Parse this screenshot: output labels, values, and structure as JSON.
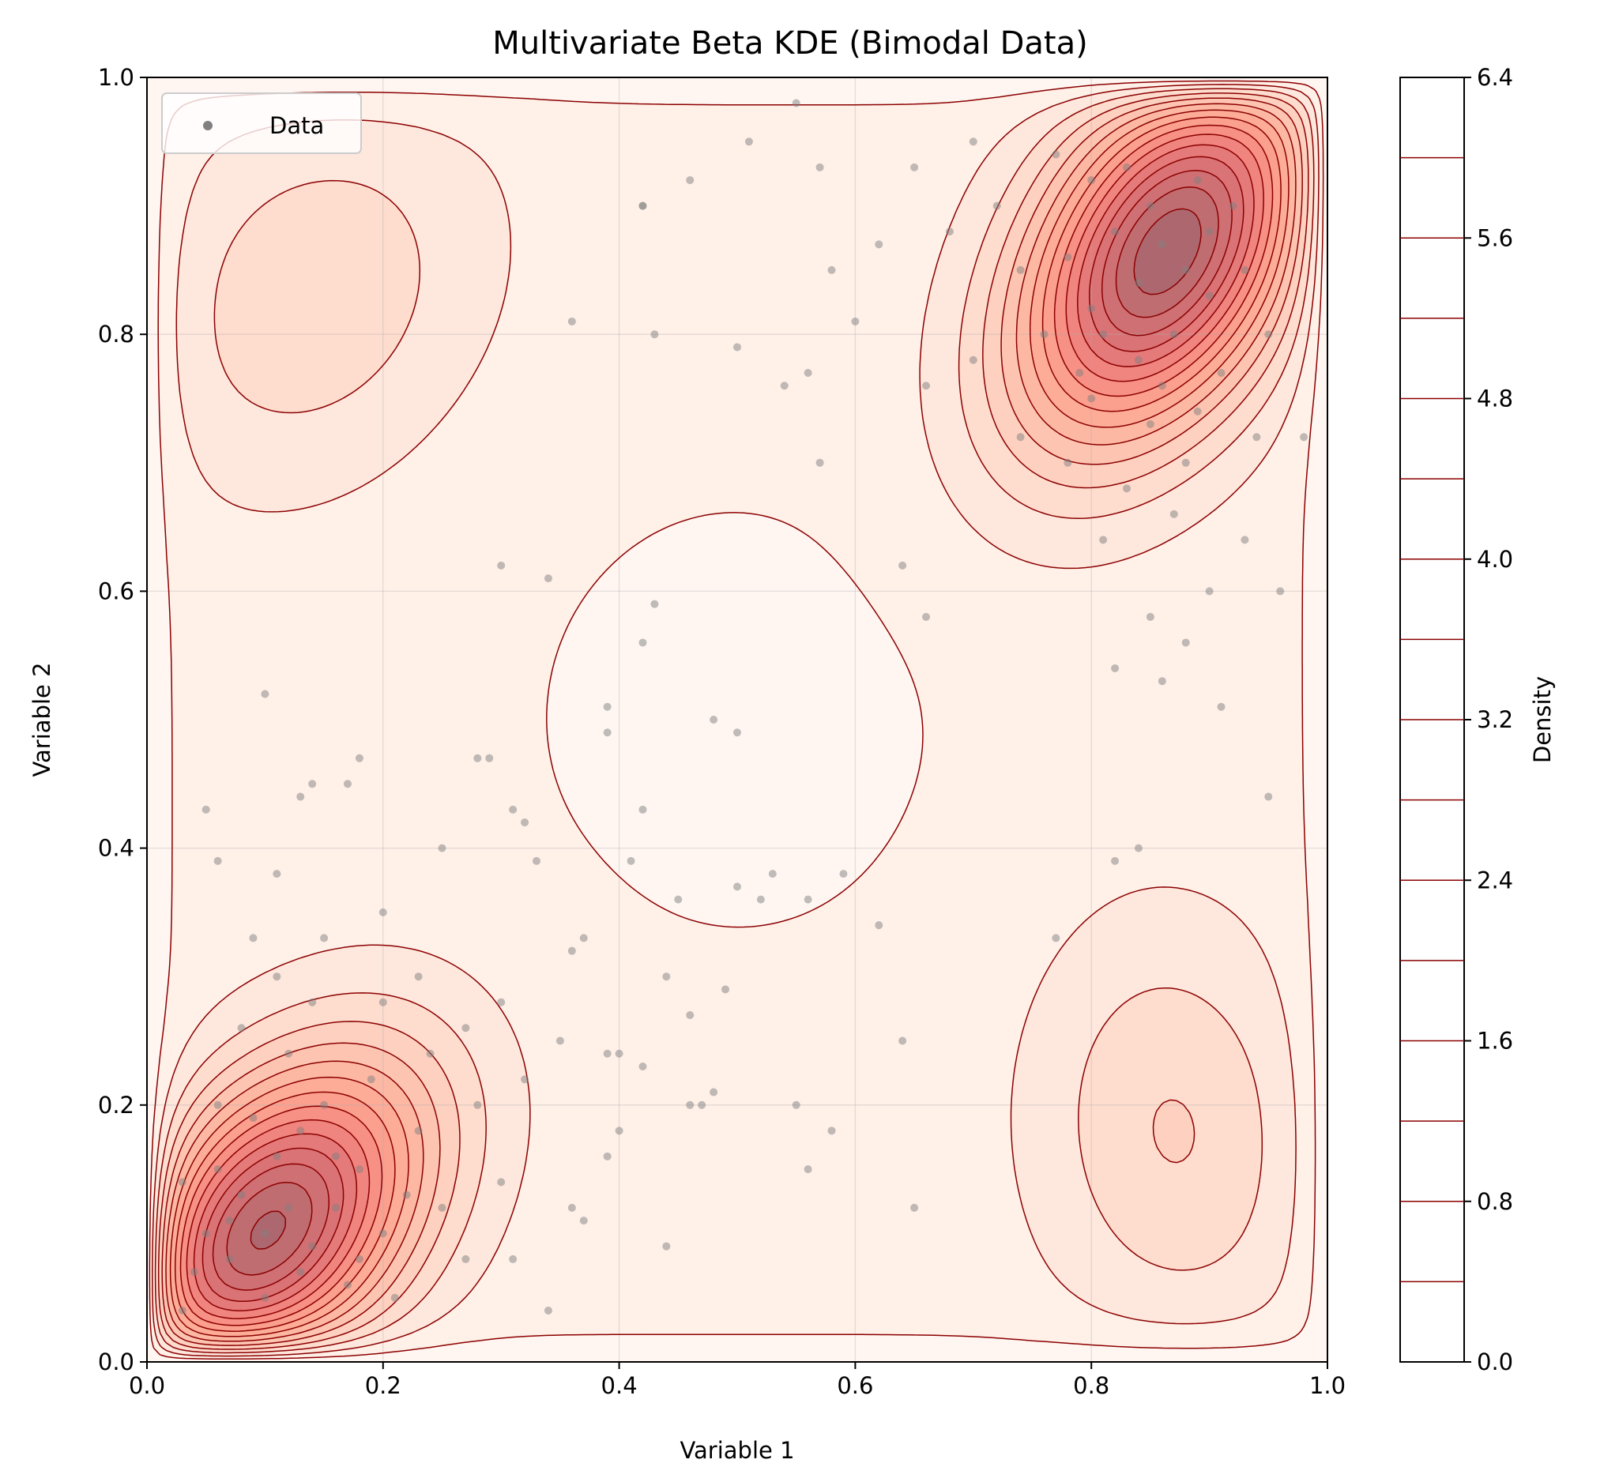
{
  "chart_data": {
    "type": "contour",
    "title": "Multivariate Beta KDE (Bimodal Data)",
    "xlabel": "Variable 1",
    "ylabel": "Variable 2",
    "xlim": [
      0,
      1
    ],
    "ylim": [
      0,
      1
    ],
    "xticks": [
      "0.0",
      "0.2",
      "0.4",
      "0.6",
      "0.8",
      "1.0"
    ],
    "yticks": [
      "0.0",
      "0.2",
      "0.4",
      "0.6",
      "0.8",
      "1.0"
    ],
    "grid": true,
    "colormap": "Reds",
    "line_color": "#8b0000",
    "point_color": "#808080",
    "legend": {
      "placement": "top-left",
      "entries": [
        "Data"
      ]
    },
    "colorbar": {
      "label": "Density",
      "range": [
        0,
        6.4
      ],
      "ticks": [
        "0.0",
        "0.8",
        "1.6",
        "2.4",
        "3.2",
        "4.0",
        "4.8",
        "5.6",
        "6.4"
      ],
      "level_step": 0.4
    },
    "peaks": [
      {
        "x": 0.865,
        "y": 0.865,
        "density": 6.2
      },
      {
        "x": 0.1,
        "y": 0.1,
        "density": 6.0
      },
      {
        "x": 0.14,
        "y": 0.83,
        "density": 1.4
      },
      {
        "x": 0.87,
        "y": 0.18,
        "density": 1.5
      }
    ],
    "points": [
      [
        0.86,
        0.87
      ],
      [
        0.85,
        0.9
      ],
      [
        0.88,
        0.85
      ],
      [
        0.82,
        0.88
      ],
      [
        0.9,
        0.83
      ],
      [
        0.87,
        0.8
      ],
      [
        0.84,
        0.78
      ],
      [
        0.8,
        0.82
      ],
      [
        0.78,
        0.86
      ],
      [
        0.92,
        0.9
      ],
      [
        0.83,
        0.93
      ],
      [
        0.89,
        0.92
      ],
      [
        0.76,
        0.8
      ],
      [
        0.74,
        0.85
      ],
      [
        0.8,
        0.75
      ],
      [
        0.85,
        0.73
      ],
      [
        0.88,
        0.7
      ],
      [
        0.91,
        0.77
      ],
      [
        0.93,
        0.85
      ],
      [
        0.72,
        0.9
      ],
      [
        0.7,
        0.78
      ],
      [
        0.78,
        0.7
      ],
      [
        0.83,
        0.68
      ],
      [
        0.87,
        0.66
      ],
      [
        0.9,
        0.6
      ],
      [
        0.94,
        0.72
      ],
      [
        0.95,
        0.8
      ],
      [
        0.68,
        0.88
      ],
      [
        0.65,
        0.93
      ],
      [
        0.7,
        0.95
      ],
      [
        0.62,
        0.87
      ],
      [
        0.6,
        0.81
      ],
      [
        0.66,
        0.76
      ],
      [
        0.74,
        0.72
      ],
      [
        0.81,
        0.64
      ],
      [
        0.85,
        0.58
      ],
      [
        0.88,
        0.56
      ],
      [
        0.82,
        0.54
      ],
      [
        0.86,
        0.53
      ],
      [
        0.91,
        0.51
      ],
      [
        0.93,
        0.64
      ],
      [
        0.96,
        0.6
      ],
      [
        0.98,
        0.72
      ],
      [
        0.95,
        0.44
      ],
      [
        0.55,
        0.98
      ],
      [
        0.51,
        0.95
      ],
      [
        0.57,
        0.93
      ],
      [
        0.58,
        0.85
      ],
      [
        0.56,
        0.77
      ],
      [
        0.57,
        0.7
      ],
      [
        0.64,
        0.62
      ],
      [
        0.66,
        0.58
      ],
      [
        0.8,
        0.92
      ],
      [
        0.77,
        0.94
      ],
      [
        0.9,
        0.88
      ],
      [
        0.84,
        0.84
      ],
      [
        0.81,
        0.8
      ],
      [
        0.79,
        0.77
      ],
      [
        0.86,
        0.76
      ],
      [
        0.89,
        0.74
      ],
      [
        0.1,
        0.1
      ],
      [
        0.12,
        0.12
      ],
      [
        0.08,
        0.13
      ],
      [
        0.14,
        0.09
      ],
      [
        0.11,
        0.16
      ],
      [
        0.16,
        0.12
      ],
      [
        0.07,
        0.08
      ],
      [
        0.13,
        0.07
      ],
      [
        0.09,
        0.19
      ],
      [
        0.18,
        0.15
      ],
      [
        0.15,
        0.2
      ],
      [
        0.2,
        0.1
      ],
      [
        0.06,
        0.15
      ],
      [
        0.05,
        0.1
      ],
      [
        0.04,
        0.07
      ],
      [
        0.1,
        0.05
      ],
      [
        0.17,
        0.06
      ],
      [
        0.22,
        0.13
      ],
      [
        0.19,
        0.22
      ],
      [
        0.12,
        0.24
      ],
      [
        0.08,
        0.26
      ],
      [
        0.14,
        0.28
      ],
      [
        0.23,
        0.18
      ],
      [
        0.25,
        0.12
      ],
      [
        0.27,
        0.08
      ],
      [
        0.2,
        0.28
      ],
      [
        0.24,
        0.24
      ],
      [
        0.28,
        0.2
      ],
      [
        0.3,
        0.14
      ],
      [
        0.11,
        0.3
      ],
      [
        0.09,
        0.33
      ],
      [
        0.15,
        0.33
      ],
      [
        0.2,
        0.35
      ],
      [
        0.23,
        0.3
      ],
      [
        0.27,
        0.26
      ],
      [
        0.3,
        0.28
      ],
      [
        0.32,
        0.22
      ],
      [
        0.31,
        0.08
      ],
      [
        0.34,
        0.04
      ],
      [
        0.03,
        0.04
      ],
      [
        0.06,
        0.2
      ],
      [
        0.03,
        0.14
      ],
      [
        0.16,
        0.16
      ],
      [
        0.13,
        0.18
      ],
      [
        0.07,
        0.11
      ],
      [
        0.18,
        0.08
      ],
      [
        0.21,
        0.05
      ],
      [
        0.11,
        0.38
      ],
      [
        0.13,
        0.44
      ],
      [
        0.14,
        0.45
      ],
      [
        0.17,
        0.45
      ],
      [
        0.18,
        0.47
      ],
      [
        0.05,
        0.43
      ],
      [
        0.06,
        0.39
      ],
      [
        0.1,
        0.52
      ],
      [
        0.25,
        0.4
      ],
      [
        0.28,
        0.47
      ],
      [
        0.29,
        0.47
      ],
      [
        0.3,
        0.62
      ],
      [
        0.31,
        0.43
      ],
      [
        0.32,
        0.42
      ],
      [
        0.34,
        0.61
      ],
      [
        0.36,
        0.81
      ],
      [
        0.42,
        0.9
      ],
      [
        0.42,
        0.9
      ],
      [
        0.43,
        0.8
      ],
      [
        0.46,
        0.92
      ],
      [
        0.42,
        0.56
      ],
      [
        0.43,
        0.59
      ],
      [
        0.39,
        0.51
      ],
      [
        0.39,
        0.49
      ],
      [
        0.48,
        0.5
      ],
      [
        0.5,
        0.49
      ],
      [
        0.5,
        0.79
      ],
      [
        0.54,
        0.76
      ],
      [
        0.42,
        0.43
      ],
      [
        0.41,
        0.39
      ],
      [
        0.37,
        0.33
      ],
      [
        0.36,
        0.32
      ],
      [
        0.33,
        0.39
      ],
      [
        0.45,
        0.36
      ],
      [
        0.5,
        0.37
      ],
      [
        0.52,
        0.36
      ],
      [
        0.53,
        0.38
      ],
      [
        0.56,
        0.36
      ],
      [
        0.59,
        0.38
      ],
      [
        0.44,
        0.3
      ],
      [
        0.46,
        0.27
      ],
      [
        0.49,
        0.29
      ],
      [
        0.39,
        0.24
      ],
      [
        0.4,
        0.24
      ],
      [
        0.42,
        0.23
      ],
      [
        0.46,
        0.2
      ],
      [
        0.47,
        0.2
      ],
      [
        0.48,
        0.21
      ],
      [
        0.55,
        0.2
      ],
      [
        0.58,
        0.18
      ],
      [
        0.56,
        0.15
      ],
      [
        0.4,
        0.18
      ],
      [
        0.39,
        0.16
      ],
      [
        0.36,
        0.12
      ],
      [
        0.37,
        0.11
      ],
      [
        0.44,
        0.09
      ],
      [
        0.62,
        0.34
      ],
      [
        0.64,
        0.25
      ],
      [
        0.65,
        0.12
      ],
      [
        0.77,
        0.33
      ],
      [
        0.82,
        0.39
      ],
      [
        0.84,
        0.4
      ],
      [
        0.35,
        0.25
      ]
    ]
  }
}
